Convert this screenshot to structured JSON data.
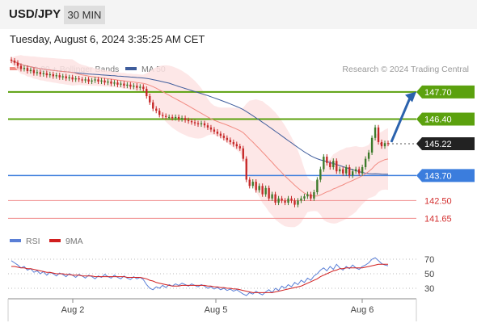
{
  "header": {
    "symbol": "USD/JPY",
    "timeframe": "30 MIN"
  },
  "date_line": "Tuesday, August 6, 2024 3:35:25 AM CET",
  "legend": {
    "ma20_label": "MA 20 + Bollinger Bands",
    "ma50_label": "MA 50",
    "rsi_label": "RSI",
    "rsi_ma_label": "9MA",
    "credit": "Research © 2024 Trading Central"
  },
  "colors": {
    "ma20": "#f28b82",
    "ma50": "#3f5d9c",
    "band": "#fde3e3",
    "candle_up": "#3d7a2a",
    "candle_down": "#c62828",
    "resistance": "#5ba10e",
    "pivot": "#3b7ddd",
    "support": "#f08a8a",
    "arrow": "#2b62ad",
    "rsi": "#5a7fd6",
    "rsi_ma": "#d11f1f"
  },
  "chart_data": {
    "type": "candlestick",
    "price_axis": {
      "ylim": [
        141.2,
        148.7
      ]
    },
    "x_labels": [
      "Aug 2",
      "Aug 5",
      "Aug 6"
    ],
    "levels": [
      {
        "value": 147.7,
        "label": "147.70",
        "kind": "resistance"
      },
      {
        "value": 146.4,
        "label": "146.40",
        "kind": "resistance"
      },
      {
        "value": 145.22,
        "label": "145.22",
        "kind": "current"
      },
      {
        "value": 143.7,
        "label": "143.70",
        "kind": "pivot"
      },
      {
        "value": 142.5,
        "label": "142.50",
        "kind": "support"
      },
      {
        "value": 141.65,
        "label": "141.65",
        "kind": "support"
      }
    ],
    "arrow": {
      "from": 145.3,
      "to": 147.6
    },
    "close": [
      149.2,
      149.1,
      148.95,
      148.8,
      148.85,
      148.7,
      148.75,
      148.6,
      148.65,
      148.55,
      148.6,
      148.5,
      148.55,
      148.45,
      148.5,
      148.4,
      148.45,
      148.35,
      148.4,
      148.3,
      148.35,
      148.3,
      148.25,
      148.3,
      148.2,
      148.25,
      148.3,
      148.2,
      148.25,
      148.15,
      148.2,
      148.1,
      148.15,
      148.05,
      148.1,
      148.0,
      148.05,
      147.95,
      148.0,
      147.9,
      147.95,
      147.85,
      147.5,
      147.2,
      146.9,
      146.8,
      146.6,
      146.55,
      146.5,
      146.5,
      146.45,
      146.5,
      146.4,
      146.45,
      146.35,
      146.3,
      146.25,
      146.2,
      146.15,
      146.2,
      146.1,
      146.0,
      145.9,
      145.8,
      145.7,
      145.6,
      145.5,
      145.4,
      145.3,
      145.2,
      145.1,
      145.0,
      144.5,
      143.5,
      143.2,
      143.4,
      143.0,
      143.2,
      142.8,
      143.1,
      142.6,
      142.8,
      142.4,
      142.6,
      142.5,
      142.4,
      142.6,
      142.5,
      142.3,
      142.5,
      142.6,
      142.7,
      142.8,
      142.6,
      142.9,
      143.5,
      144.0,
      144.6,
      144.3,
      144.1,
      144.4,
      143.9,
      144.0,
      143.8,
      144.1,
      143.7,
      143.9,
      144.0,
      143.8,
      144.1,
      144.5,
      144.8,
      145.5,
      146.0,
      145.3,
      145.1,
      145.25,
      145.22
    ],
    "rsi": {
      "levels": [
        70,
        50,
        30
      ],
      "values": [
        68,
        65,
        62,
        58,
        60,
        55,
        57,
        52,
        54,
        50,
        53,
        48,
        52,
        50,
        47,
        51,
        49,
        46,
        50,
        48,
        45,
        49,
        47,
        44,
        48,
        46,
        43,
        47,
        45,
        49,
        46,
        44,
        48,
        45,
        43,
        47,
        44,
        42,
        46,
        43,
        45,
        42,
        35,
        30,
        28,
        32,
        30,
        34,
        31,
        35,
        33,
        36,
        34,
        37,
        35,
        33,
        36,
        34,
        32,
        35,
        33,
        30,
        32,
        29,
        31,
        28,
        30,
        27,
        29,
        26,
        28,
        25,
        22,
        20,
        24,
        22,
        26,
        23,
        21,
        25,
        28,
        24,
        30,
        27,
        33,
        30,
        35,
        32,
        38,
        35,
        41,
        38,
        44,
        41,
        47,
        50,
        55,
        58,
        54,
        60,
        56,
        63,
        58,
        55,
        60,
        57,
        62,
        58,
        56,
        60,
        62,
        65,
        70,
        72,
        68,
        64,
        62,
        61
      ],
      "ma9": [
        60,
        60,
        59,
        58,
        58,
        57,
        57,
        56,
        55,
        54,
        53,
        52,
        52,
        51,
        50,
        50,
        50,
        49,
        49,
        48,
        48,
        48,
        47,
        47,
        47,
        47,
        46,
        46,
        46,
        46,
        46,
        46,
        46,
        46,
        46,
        46,
        45,
        45,
        45,
        45,
        45,
        44,
        43,
        41,
        40,
        38,
        37,
        36,
        35,
        34,
        33,
        33,
        33,
        34,
        34,
        34,
        34,
        34,
        34,
        34,
        34,
        33,
        33,
        32,
        32,
        31,
        31,
        30,
        30,
        29,
        29,
        28,
        27,
        26,
        25,
        24,
        24,
        24,
        24,
        24,
        24,
        24,
        25,
        26,
        27,
        28,
        29,
        30,
        31,
        32,
        33,
        35,
        37,
        39,
        41,
        43,
        46,
        48,
        50,
        52,
        54,
        55,
        57,
        57,
        58,
        58,
        58,
        58,
        58,
        58,
        59,
        60,
        61,
        62,
        63,
        63,
        63,
        63
      ]
    }
  }
}
